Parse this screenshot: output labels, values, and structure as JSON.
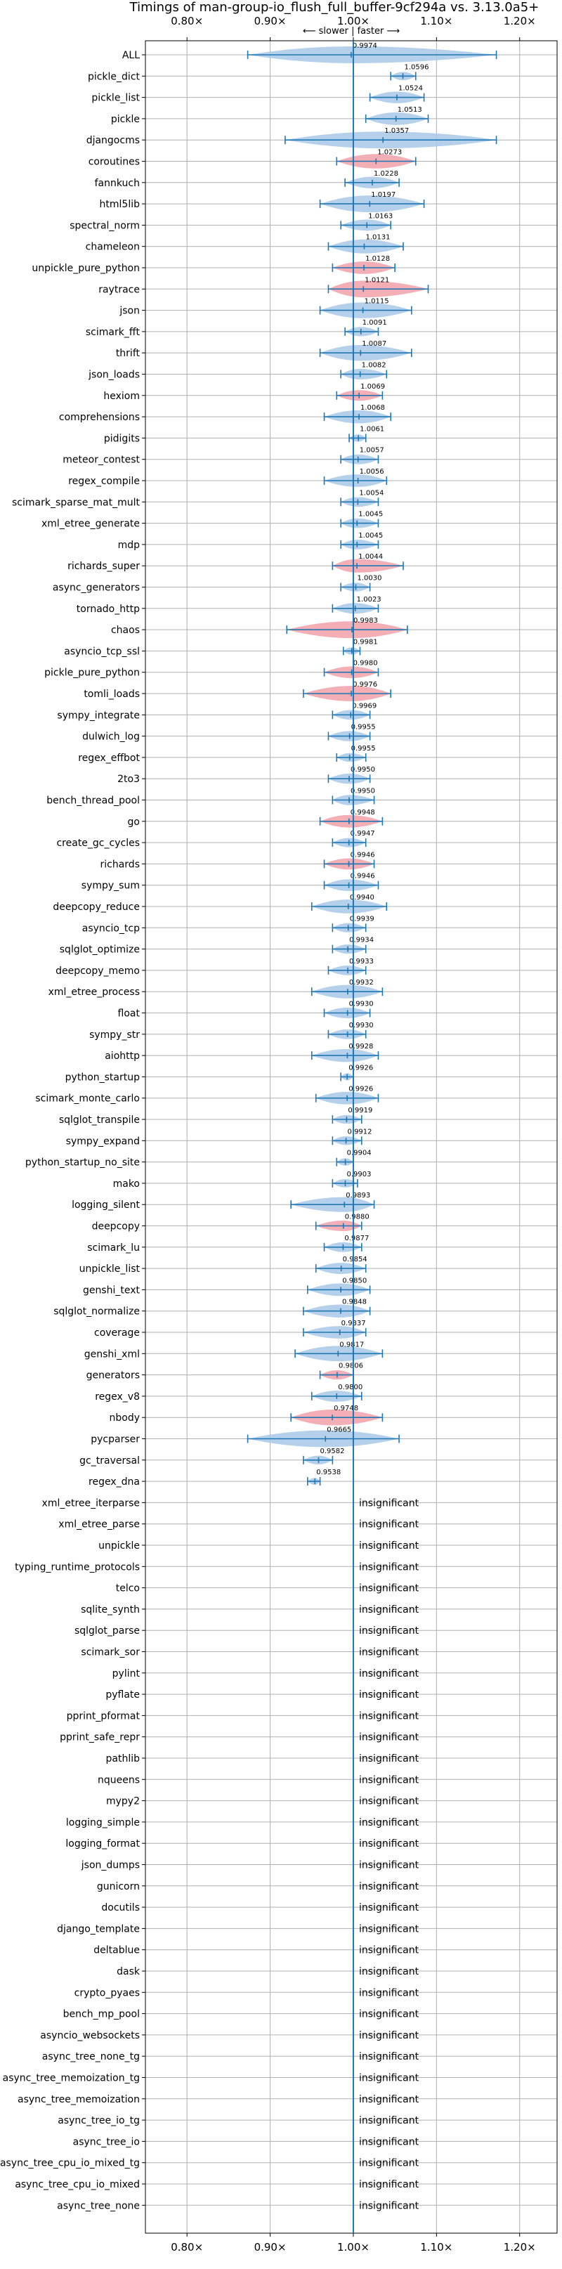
{
  "chart_data": {
    "type": "violin",
    "title": "Timings of man-group-io_flush_full_buffer-9cf294a vs. 3.13.0a5+",
    "direction_label": "⟵ slower | faster ⟶",
    "x_ticks": [
      "0.80×",
      "0.90×",
      "1.00×",
      "1.10×",
      "1.20×"
    ],
    "x_tick_values": [
      0.8,
      0.9,
      1.0,
      1.1,
      1.2
    ],
    "xlim": [
      0.75,
      1.245
    ],
    "reference_line": 1.0,
    "grid": true,
    "colors": {
      "faster": "#a8c8e8",
      "slower": "#f2a0a8",
      "whisker": "#1f77b4",
      "grid": "#b0b0b0",
      "reference": "#1f77b4"
    },
    "insignificant_label": "insignificant",
    "benchmarks": [
      {
        "name": "ALL",
        "value": 0.9974,
        "label": "0.9974",
        "lo": 0.873,
        "hi": 1.172,
        "color": "faster"
      },
      {
        "name": "pickle_dict",
        "value": 1.0596,
        "label": "1.0596",
        "lo": 1.045,
        "hi": 1.075,
        "color": "faster"
      },
      {
        "name": "pickle_list",
        "value": 1.0524,
        "label": "1.0524",
        "lo": 1.02,
        "hi": 1.085,
        "color": "faster"
      },
      {
        "name": "pickle",
        "value": 1.0513,
        "label": "1.0513",
        "lo": 1.015,
        "hi": 1.09,
        "color": "faster"
      },
      {
        "name": "djangocms",
        "value": 1.0357,
        "label": "1.0357",
        "lo": 0.918,
        "hi": 1.172,
        "color": "faster"
      },
      {
        "name": "coroutines",
        "value": 1.0273,
        "label": "1.0273",
        "lo": 0.98,
        "hi": 1.075,
        "color": "slower"
      },
      {
        "name": "fannkuch",
        "value": 1.0228,
        "label": "1.0228",
        "lo": 0.99,
        "hi": 1.055,
        "color": "faster"
      },
      {
        "name": "html5lib",
        "value": 1.0197,
        "label": "1.0197",
        "lo": 0.96,
        "hi": 1.085,
        "color": "faster"
      },
      {
        "name": "spectral_norm",
        "value": 1.0163,
        "label": "1.0163",
        "lo": 0.985,
        "hi": 1.045,
        "color": "faster"
      },
      {
        "name": "chameleon",
        "value": 1.0131,
        "label": "1.0131",
        "lo": 0.97,
        "hi": 1.06,
        "color": "faster"
      },
      {
        "name": "unpickle_pure_python",
        "value": 1.0128,
        "label": "1.0128",
        "lo": 0.975,
        "hi": 1.05,
        "color": "slower"
      },
      {
        "name": "raytrace",
        "value": 1.0121,
        "label": "1.0121",
        "lo": 0.97,
        "hi": 1.09,
        "color": "slower"
      },
      {
        "name": "json",
        "value": 1.0115,
        "label": "1.0115",
        "lo": 0.96,
        "hi": 1.07,
        "color": "faster"
      },
      {
        "name": "scimark_fft",
        "value": 1.0091,
        "label": "1.0091",
        "lo": 0.99,
        "hi": 1.03,
        "color": "faster"
      },
      {
        "name": "thrift",
        "value": 1.0087,
        "label": "1.0087",
        "lo": 0.96,
        "hi": 1.07,
        "color": "faster"
      },
      {
        "name": "json_loads",
        "value": 1.0082,
        "label": "1.0082",
        "lo": 0.985,
        "hi": 1.04,
        "color": "faster"
      },
      {
        "name": "hexiom",
        "value": 1.0069,
        "label": "1.0069",
        "lo": 0.98,
        "hi": 1.035,
        "color": "slower"
      },
      {
        "name": "comprehensions",
        "value": 1.0068,
        "label": "1.0068",
        "lo": 0.965,
        "hi": 1.045,
        "color": "faster"
      },
      {
        "name": "pidigits",
        "value": 1.0061,
        "label": "1.0061",
        "lo": 0.995,
        "hi": 1.015,
        "color": "faster"
      },
      {
        "name": "meteor_contest",
        "value": 1.0057,
        "label": "1.0057",
        "lo": 0.985,
        "hi": 1.03,
        "color": "faster"
      },
      {
        "name": "regex_compile",
        "value": 1.0056,
        "label": "1.0056",
        "lo": 0.965,
        "hi": 1.04,
        "color": "faster"
      },
      {
        "name": "scimark_sparse_mat_mult",
        "value": 1.0054,
        "label": "1.0054",
        "lo": 0.985,
        "hi": 1.03,
        "color": "faster"
      },
      {
        "name": "xml_etree_generate",
        "value": 1.0045,
        "label": "1.0045",
        "lo": 0.985,
        "hi": 1.03,
        "color": "faster"
      },
      {
        "name": "mdp",
        "value": 1.0045,
        "label": "1.0045",
        "lo": 0.985,
        "hi": 1.03,
        "color": "faster"
      },
      {
        "name": "richards_super",
        "value": 1.0044,
        "label": "1.0044",
        "lo": 0.975,
        "hi": 1.06,
        "color": "slower"
      },
      {
        "name": "async_generators",
        "value": 1.003,
        "label": "1.0030",
        "lo": 0.985,
        "hi": 1.02,
        "color": "faster"
      },
      {
        "name": "tornado_http",
        "value": 1.0023,
        "label": "1.0023",
        "lo": 0.975,
        "hi": 1.03,
        "color": "faster"
      },
      {
        "name": "chaos",
        "value": 0.9983,
        "label": "0.9983",
        "lo": 0.92,
        "hi": 1.065,
        "color": "slower"
      },
      {
        "name": "asyncio_tcp_ssl",
        "value": 0.9981,
        "label": "0.9981",
        "lo": 0.988,
        "hi": 1.008,
        "color": "faster"
      },
      {
        "name": "pickle_pure_python",
        "value": 0.998,
        "label": "0.9980",
        "lo": 0.965,
        "hi": 1.03,
        "color": "slower"
      },
      {
        "name": "tomli_loads",
        "value": 0.9976,
        "label": "0.9976",
        "lo": 0.94,
        "hi": 1.045,
        "color": "slower"
      },
      {
        "name": "sympy_integrate",
        "value": 0.9969,
        "label": "0.9969",
        "lo": 0.975,
        "hi": 1.02,
        "color": "faster"
      },
      {
        "name": "dulwich_log",
        "value": 0.9955,
        "label": "0.9955",
        "lo": 0.97,
        "hi": 1.02,
        "color": "faster"
      },
      {
        "name": "regex_effbot",
        "value": 0.9955,
        "label": "0.9955",
        "lo": 0.98,
        "hi": 1.015,
        "color": "faster"
      },
      {
        "name": "2to3",
        "value": 0.995,
        "label": "0.9950",
        "lo": 0.97,
        "hi": 1.02,
        "color": "faster"
      },
      {
        "name": "bench_thread_pool",
        "value": 0.995,
        "label": "0.9950",
        "lo": 0.975,
        "hi": 1.025,
        "color": "faster"
      },
      {
        "name": "go",
        "value": 0.9948,
        "label": "0.9948",
        "lo": 0.96,
        "hi": 1.035,
        "color": "slower"
      },
      {
        "name": "create_gc_cycles",
        "value": 0.9947,
        "label": "0.9947",
        "lo": 0.975,
        "hi": 1.015,
        "color": "faster"
      },
      {
        "name": "richards",
        "value": 0.9946,
        "label": "0.9946",
        "lo": 0.965,
        "hi": 1.025,
        "color": "slower"
      },
      {
        "name": "sympy_sum",
        "value": 0.9946,
        "label": "0.9946",
        "lo": 0.965,
        "hi": 1.03,
        "color": "faster"
      },
      {
        "name": "deepcopy_reduce",
        "value": 0.994,
        "label": "0.9940",
        "lo": 0.95,
        "hi": 1.04,
        "color": "faster"
      },
      {
        "name": "asyncio_tcp",
        "value": 0.9939,
        "label": "0.9939",
        "lo": 0.975,
        "hi": 1.015,
        "color": "faster"
      },
      {
        "name": "sqlglot_optimize",
        "value": 0.9934,
        "label": "0.9934",
        "lo": 0.975,
        "hi": 1.015,
        "color": "faster"
      },
      {
        "name": "deepcopy_memo",
        "value": 0.9933,
        "label": "0.9933",
        "lo": 0.97,
        "hi": 1.015,
        "color": "faster"
      },
      {
        "name": "xml_etree_process",
        "value": 0.9932,
        "label": "0.9932",
        "lo": 0.95,
        "hi": 1.035,
        "color": "faster"
      },
      {
        "name": "float",
        "value": 0.993,
        "label": "0.9930",
        "lo": 0.965,
        "hi": 1.02,
        "color": "faster"
      },
      {
        "name": "sympy_str",
        "value": 0.993,
        "label": "0.9930",
        "lo": 0.97,
        "hi": 1.015,
        "color": "faster"
      },
      {
        "name": "aiohttp",
        "value": 0.9928,
        "label": "0.9928",
        "lo": 0.95,
        "hi": 1.03,
        "color": "faster"
      },
      {
        "name": "python_startup",
        "value": 0.9926,
        "label": "0.9926",
        "lo": 0.985,
        "hi": 1.0,
        "color": "faster"
      },
      {
        "name": "scimark_monte_carlo",
        "value": 0.9926,
        "label": "0.9926",
        "lo": 0.955,
        "hi": 1.03,
        "color": "faster"
      },
      {
        "name": "sqlglot_transpile",
        "value": 0.9919,
        "label": "0.9919",
        "lo": 0.975,
        "hi": 1.01,
        "color": "faster"
      },
      {
        "name": "sympy_expand",
        "value": 0.9912,
        "label": "0.9912",
        "lo": 0.975,
        "hi": 1.01,
        "color": "faster"
      },
      {
        "name": "python_startup_no_site",
        "value": 0.9904,
        "label": "0.9904",
        "lo": 0.98,
        "hi": 1.0,
        "color": "faster"
      },
      {
        "name": "mako",
        "value": 0.9903,
        "label": "0.9903",
        "lo": 0.975,
        "hi": 1.005,
        "color": "faster"
      },
      {
        "name": "logging_silent",
        "value": 0.9893,
        "label": "0.9893",
        "lo": 0.925,
        "hi": 1.025,
        "color": "faster"
      },
      {
        "name": "deepcopy",
        "value": 0.988,
        "label": "0.9880",
        "lo": 0.955,
        "hi": 1.01,
        "color": "slower"
      },
      {
        "name": "scimark_lu",
        "value": 0.9877,
        "label": "0.9877",
        "lo": 0.965,
        "hi": 1.01,
        "color": "faster"
      },
      {
        "name": "unpickle_list",
        "value": 0.9854,
        "label": "0.9854",
        "lo": 0.955,
        "hi": 1.015,
        "color": "faster"
      },
      {
        "name": "genshi_text",
        "value": 0.985,
        "label": "0.9850",
        "lo": 0.945,
        "hi": 1.02,
        "color": "faster"
      },
      {
        "name": "sqlglot_normalize",
        "value": 0.9848,
        "label": "0.9848",
        "lo": 0.94,
        "hi": 1.02,
        "color": "faster"
      },
      {
        "name": "coverage",
        "value": 0.9837,
        "label": "0.9837",
        "lo": 0.94,
        "hi": 1.015,
        "color": "faster"
      },
      {
        "name": "genshi_xml",
        "value": 0.9817,
        "label": "0.9817",
        "lo": 0.93,
        "hi": 1.035,
        "color": "faster"
      },
      {
        "name": "generators",
        "value": 0.9806,
        "label": "0.9806",
        "lo": 0.96,
        "hi": 1.0,
        "color": "slower"
      },
      {
        "name": "regex_v8",
        "value": 0.98,
        "label": "0.9800",
        "lo": 0.95,
        "hi": 1.01,
        "color": "faster"
      },
      {
        "name": "nbody",
        "value": 0.9748,
        "label": "0.9748",
        "lo": 0.925,
        "hi": 1.035,
        "color": "slower"
      },
      {
        "name": "pycparser",
        "value": 0.9665,
        "label": "0.9665",
        "lo": 0.873,
        "hi": 1.055,
        "color": "faster"
      },
      {
        "name": "gc_traversal",
        "value": 0.9582,
        "label": "0.9582",
        "lo": 0.94,
        "hi": 0.975,
        "color": "faster"
      },
      {
        "name": "regex_dna",
        "value": 0.9538,
        "label": "0.9538",
        "lo": 0.945,
        "hi": 0.96,
        "color": "faster"
      },
      {
        "name": "xml_etree_iterparse",
        "value": null,
        "label": "insignificant"
      },
      {
        "name": "xml_etree_parse",
        "value": null,
        "label": "insignificant"
      },
      {
        "name": "unpickle",
        "value": null,
        "label": "insignificant"
      },
      {
        "name": "typing_runtime_protocols",
        "value": null,
        "label": "insignificant"
      },
      {
        "name": "telco",
        "value": null,
        "label": "insignificant"
      },
      {
        "name": "sqlite_synth",
        "value": null,
        "label": "insignificant"
      },
      {
        "name": "sqlglot_parse",
        "value": null,
        "label": "insignificant"
      },
      {
        "name": "scimark_sor",
        "value": null,
        "label": "insignificant"
      },
      {
        "name": "pylint",
        "value": null,
        "label": "insignificant"
      },
      {
        "name": "pyflate",
        "value": null,
        "label": "insignificant"
      },
      {
        "name": "pprint_pformat",
        "value": null,
        "label": "insignificant"
      },
      {
        "name": "pprint_safe_repr",
        "value": null,
        "label": "insignificant"
      },
      {
        "name": "pathlib",
        "value": null,
        "label": "insignificant"
      },
      {
        "name": "nqueens",
        "value": null,
        "label": "insignificant"
      },
      {
        "name": "mypy2",
        "value": null,
        "label": "insignificant"
      },
      {
        "name": "logging_simple",
        "value": null,
        "label": "insignificant"
      },
      {
        "name": "logging_format",
        "value": null,
        "label": "insignificant"
      },
      {
        "name": "json_dumps",
        "value": null,
        "label": "insignificant"
      },
      {
        "name": "gunicorn",
        "value": null,
        "label": "insignificant"
      },
      {
        "name": "docutils",
        "value": null,
        "label": "insignificant"
      },
      {
        "name": "django_template",
        "value": null,
        "label": "insignificant"
      },
      {
        "name": "deltablue",
        "value": null,
        "label": "insignificant"
      },
      {
        "name": "dask",
        "value": null,
        "label": "insignificant"
      },
      {
        "name": "crypto_pyaes",
        "value": null,
        "label": "insignificant"
      },
      {
        "name": "bench_mp_pool",
        "value": null,
        "label": "insignificant"
      },
      {
        "name": "asyncio_websockets",
        "value": null,
        "label": "insignificant"
      },
      {
        "name": "async_tree_none_tg",
        "value": null,
        "label": "insignificant"
      },
      {
        "name": "async_tree_memoization_tg",
        "value": null,
        "label": "insignificant"
      },
      {
        "name": "async_tree_memoization",
        "value": null,
        "label": "insignificant"
      },
      {
        "name": "async_tree_io_tg",
        "value": null,
        "label": "insignificant"
      },
      {
        "name": "async_tree_io",
        "value": null,
        "label": "insignificant"
      },
      {
        "name": "async_tree_cpu_io_mixed_tg",
        "value": null,
        "label": "insignificant"
      },
      {
        "name": "async_tree_cpu_io_mixed",
        "value": null,
        "label": "insignificant"
      },
      {
        "name": "async_tree_none",
        "value": null,
        "label": "insignificant"
      }
    ]
  }
}
